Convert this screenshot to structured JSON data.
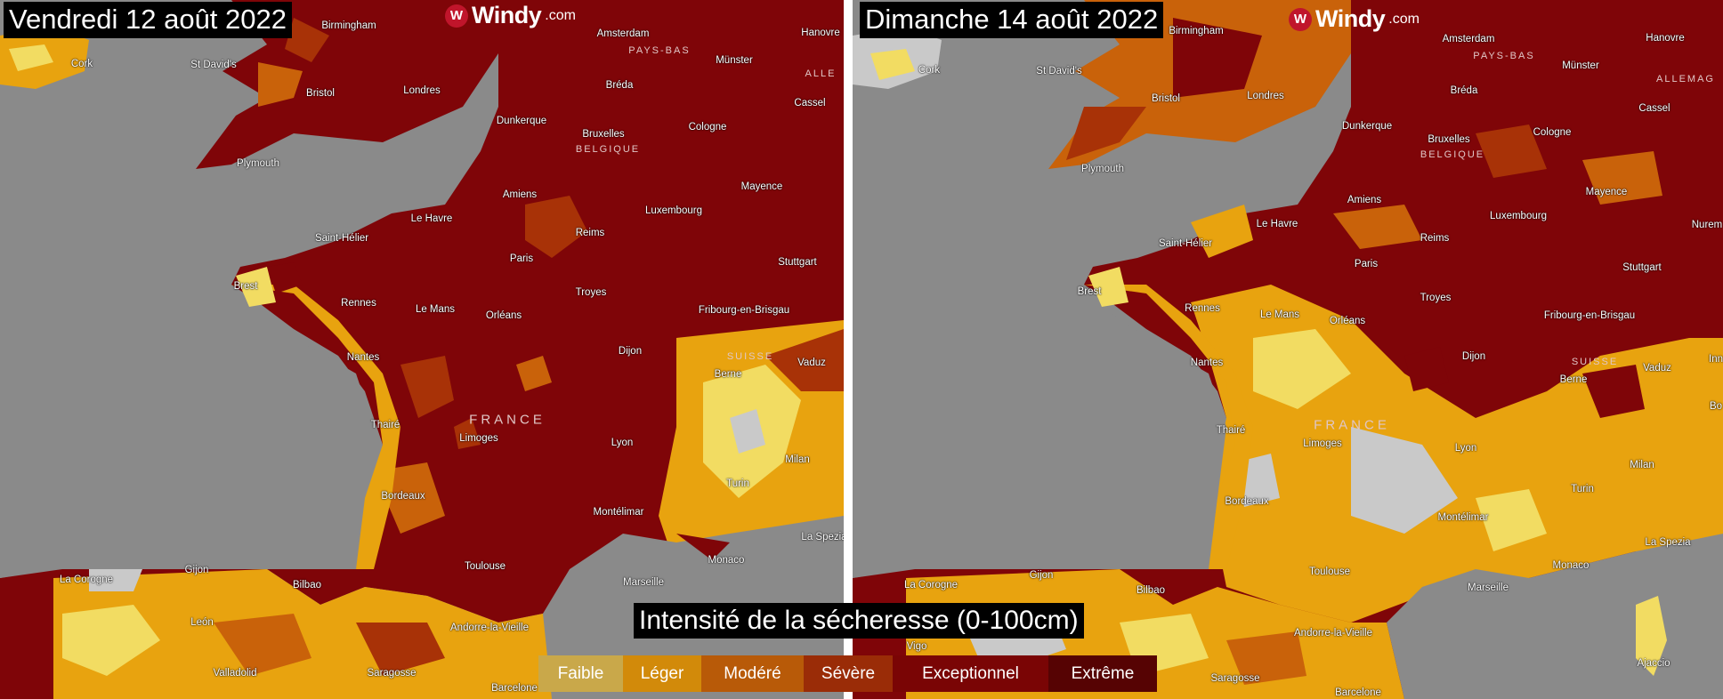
{
  "panels": [
    {
      "date": "Vendredi 12 août 2022",
      "logo": {
        "text": "Windy",
        "suffix": ".com"
      },
      "cities": [
        "Cork",
        "Birmingham",
        "St David's",
        "Bristol",
        "Londres",
        "Amsterdam",
        "Münster",
        "Hanovre",
        "Bréda",
        "Cassel",
        "Plymouth",
        "Dunkerque",
        "Bruxelles",
        "Cologne",
        "Amiens",
        "Mayence",
        "Luxembourg",
        "Le Havre",
        "Reims",
        "Saint-Hélier",
        "Stuttgart",
        "Paris",
        "Brest",
        "Troyes",
        "Rennes",
        "Le Mans",
        "Orléans",
        "Fribourg-en-Brisgau",
        "Nantes",
        "Dijon",
        "Vaduz",
        "Berne",
        "Thairé",
        "Limoges",
        "Lyon",
        "Milan",
        "Bordeaux",
        "Turin",
        "Montélimar",
        "La Spezia",
        "Monaco",
        "La Corogne",
        "Gijon",
        "Bilbao",
        "Toulouse",
        "Marseille",
        "León",
        "Andorre-la-Vieille",
        "Valladolid",
        "Saragosse",
        "Barcelone"
      ],
      "countries": [
        "PAYS-BAS",
        "BELGIQUE",
        "ALLE",
        "SUISSE",
        "FRANCE"
      ]
    },
    {
      "date": "Dimanche 14 août 2022",
      "logo": {
        "text": "Windy",
        "suffix": ".com"
      },
      "cities": [
        "Cork",
        "Birmingham",
        "St David's",
        "Bristol",
        "Londres",
        "Amsterdam",
        "Münster",
        "Hanovre",
        "Bréda",
        "Cassel",
        "Plymouth",
        "Dunkerque",
        "Bruxelles",
        "Cologne",
        "Amiens",
        "Mayence",
        "Nurem",
        "Luxembourg",
        "Le Havre",
        "Reims",
        "Saint-Hélier",
        "Stuttgart",
        "Paris",
        "Brest",
        "Troyes",
        "Rennes",
        "Le Mans",
        "Orléans",
        "Fribourg-en-Brisgau",
        "Nantes",
        "Dijon",
        "Vaduz",
        "Inn",
        "Berne",
        "Thairé",
        "Limoges",
        "Lyon",
        "Bo",
        "Milan",
        "Bordeaux",
        "Turin",
        "Montélimar",
        "La Spezia",
        "Monaco",
        "La Corogne",
        "Gijon",
        "Bilbao",
        "Toulouse",
        "Marseille",
        "Andorre-la-Vieille",
        "Ajaccio",
        "Saragosse",
        "Barcelone",
        "Vigo"
      ],
      "countries": [
        "PAYS-BAS",
        "BELGIQUE",
        "ALLEMAG",
        "SUISSE",
        "FRANCE"
      ]
    }
  ],
  "legend": {
    "title": "Intensité de la sécheresse (0-100cm)",
    "items": [
      {
        "label": "Faible",
        "color": "#c9a84a"
      },
      {
        "label": "Léger",
        "color": "#d28a0a"
      },
      {
        "label": "Modéré",
        "color": "#b85a08"
      },
      {
        "label": "Sévère",
        "color": "#9a2c07"
      },
      {
        "label": "Exceptionnel",
        "color": "#7a0505"
      },
      {
        "label": "Extrême",
        "color": "#560303"
      }
    ]
  },
  "colors": {
    "sea": "#8a8a8a",
    "none": "#c9c9c9",
    "faible": "#f2dc62",
    "leger": "#e8a30f",
    "modere": "#c9620a",
    "severe": "#a83207",
    "exceptionnel": "#7f0508"
  }
}
